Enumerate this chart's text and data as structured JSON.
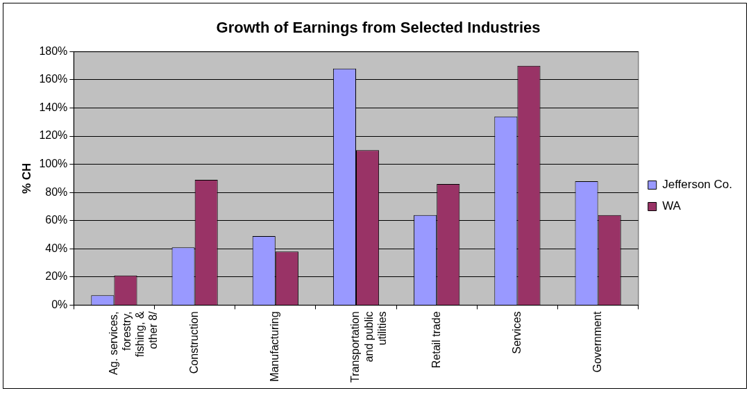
{
  "chart_data": {
    "type": "bar",
    "title": "Growth of Earnings from Selected Industries",
    "ylabel": "% CH",
    "categories": [
      "Ag. services, forestry, fishing, & other 8/",
      "Construction",
      "Manufacturing",
      "Transportation and public utilities",
      "Retail trade",
      "Services",
      "Government"
    ],
    "series": [
      {
        "name": "Jefferson Co.",
        "color": "#9999ff",
        "values": [
          7,
          41,
          49,
          168,
          64,
          134,
          88
        ]
      },
      {
        "name": "WA",
        "color": "#993366",
        "values": [
          21,
          89,
          38,
          110,
          86,
          170,
          64
        ]
      }
    ],
    "ylim": [
      0,
      180
    ],
    "yticks": [
      {
        "value": 0,
        "label": "0%"
      },
      {
        "value": 20,
        "label": "20%"
      },
      {
        "value": 40,
        "label": "40%"
      },
      {
        "value": 60,
        "label": "60%"
      },
      {
        "value": 80,
        "label": "80%"
      },
      {
        "value": 100,
        "label": "100%"
      },
      {
        "value": 120,
        "label": "120%"
      },
      {
        "value": 140,
        "label": "140%"
      },
      {
        "value": 160,
        "label": "160%"
      },
      {
        "value": 180,
        "label": "180%"
      }
    ],
    "grid": "y",
    "legend": "right"
  }
}
